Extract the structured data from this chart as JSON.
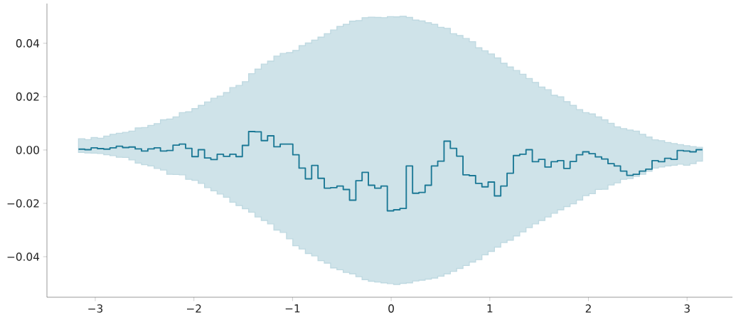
{
  "chart_data": {
    "type": "step",
    "x": [
      -3.17,
      -3.106,
      -3.042,
      -2.978,
      -2.914,
      -2.851,
      -2.787,
      -2.723,
      -2.659,
      -2.595,
      -2.531,
      -2.467,
      -2.403,
      -2.339,
      -2.275,
      -2.212,
      -2.148,
      -2.084,
      -2.02,
      -1.956,
      -1.892,
      -1.828,
      -1.764,
      -1.7,
      -1.636,
      -1.573,
      -1.509,
      -1.445,
      -1.381,
      -1.317,
      -1.253,
      -1.189,
      -1.125,
      -1.061,
      -0.997,
      -0.934,
      -0.87,
      -0.806,
      -0.742,
      -0.678,
      -0.614,
      -0.55,
      -0.486,
      -0.422,
      -0.358,
      -0.295,
      -0.231,
      -0.167,
      -0.103,
      -0.039,
      0.025,
      0.089,
      0.153,
      0.217,
      0.281,
      0.344,
      0.408,
      0.472,
      0.536,
      0.6,
      0.664,
      0.728,
      0.792,
      0.856,
      0.92,
      0.983,
      1.047,
      1.111,
      1.175,
      1.239,
      1.303,
      1.367,
      1.431,
      1.495,
      1.559,
      1.622,
      1.686,
      1.75,
      1.814,
      1.878,
      1.942,
      2.006,
      2.07,
      2.134,
      2.198,
      2.261,
      2.325,
      2.389,
      2.453,
      2.517,
      2.581,
      2.645,
      2.709,
      2.773,
      2.837,
      2.9,
      2.964,
      3.028,
      3.092,
      3.156
    ],
    "xlim": [
      -3.49,
      3.46
    ],
    "ylim": [
      -0.0552,
      0.0549
    ],
    "xticks": [
      {
        "value": -3,
        "label": "−3"
      },
      {
        "value": -2,
        "label": "−2"
      },
      {
        "value": -1,
        "label": "−1"
      },
      {
        "value": 0,
        "label": "0"
      },
      {
        "value": 1,
        "label": "1"
      },
      {
        "value": 2,
        "label": "2"
      },
      {
        "value": 3,
        "label": "3"
      }
    ],
    "yticks": [
      {
        "value": -0.04,
        "label": "−0.04"
      },
      {
        "value": -0.02,
        "label": "−0.02"
      },
      {
        "value": 0,
        "label": "0.00"
      },
      {
        "value": 0.02,
        "label": "0.02"
      },
      {
        "value": 0.04,
        "label": "0.04"
      }
    ],
    "series": [
      {
        "color": "#1b7895",
        "values": [
          0.0003,
          0.0001,
          0.0008,
          0.0005,
          0.0003,
          0.0008,
          0.0014,
          0.0009,
          0.0011,
          0.0004,
          -0.0004,
          0.0004,
          0.0008,
          -0.0004,
          -0.0002,
          0.0018,
          0.0022,
          0.0006,
          -0.0025,
          0.0001,
          -0.003,
          -0.0036,
          -0.0016,
          -0.0024,
          -0.0016,
          -0.0025,
          0.0017,
          0.0069,
          0.0068,
          0.0035,
          0.0053,
          0.0012,
          0.0022,
          0.0022,
          -0.0018,
          -0.0068,
          -0.0108,
          -0.0058,
          -0.0106,
          -0.0143,
          -0.0141,
          -0.0135,
          -0.0148,
          -0.0188,
          -0.0115,
          -0.0084,
          -0.0132,
          -0.0143,
          -0.0135,
          -0.0228,
          -0.0224,
          -0.0219,
          -0.006,
          -0.0162,
          -0.0159,
          -0.0132,
          -0.006,
          -0.0042,
          0.0033,
          0.0006,
          -0.0023,
          -0.0093,
          -0.0096,
          -0.0125,
          -0.0138,
          -0.012,
          -0.0172,
          -0.0135,
          -0.0087,
          -0.0021,
          -0.0016,
          0.0001,
          -0.0044,
          -0.0035,
          -0.0064,
          -0.0044,
          -0.004,
          -0.0069,
          -0.0043,
          -0.0018,
          -0.0007,
          -0.0014,
          -0.0026,
          -0.0034,
          -0.0051,
          -0.006,
          -0.0079,
          -0.0095,
          -0.0091,
          -0.0079,
          -0.0072,
          -0.004,
          -0.0044,
          -0.0031,
          -0.0035,
          -0.0002,
          -0.0004,
          -0.0007,
          0.0001,
          0.0001
        ],
        "lower": [
          -0.0009,
          -0.0011,
          -0.0012,
          -0.0013,
          -0.0018,
          -0.0021,
          -0.0027,
          -0.0028,
          -0.0037,
          -0.0049,
          -0.0055,
          -0.006,
          -0.0069,
          -0.0075,
          -0.0091,
          -0.0092,
          -0.0093,
          -0.011,
          -0.0114,
          -0.0125,
          -0.0141,
          -0.0153,
          -0.0165,
          -0.0177,
          -0.0196,
          -0.0208,
          -0.022,
          -0.0233,
          -0.0251,
          -0.0264,
          -0.0277,
          -0.03,
          -0.0309,
          -0.0333,
          -0.0359,
          -0.0371,
          -0.0388,
          -0.0397,
          -0.0415,
          -0.0424,
          -0.0442,
          -0.0449,
          -0.0459,
          -0.0464,
          -0.0475,
          -0.0486,
          -0.0492,
          -0.0495,
          -0.0498,
          -0.0501,
          -0.0504,
          -0.05,
          -0.0498,
          -0.0491,
          -0.0488,
          -0.0484,
          -0.048,
          -0.0473,
          -0.0464,
          -0.0455,
          -0.0444,
          -0.0433,
          -0.042,
          -0.0411,
          -0.0393,
          -0.038,
          -0.0364,
          -0.0347,
          -0.0338,
          -0.0322,
          -0.0307,
          -0.0291,
          -0.0277,
          -0.0264,
          -0.0251,
          -0.0237,
          -0.0224,
          -0.0212,
          -0.0202,
          -0.0188,
          -0.0171,
          -0.0164,
          -0.0148,
          -0.0147,
          -0.0131,
          -0.0123,
          -0.011,
          -0.0107,
          -0.0099,
          -0.0091,
          -0.008,
          -0.0068,
          -0.0064,
          -0.006,
          -0.0057,
          -0.0053,
          -0.0057,
          -0.0051,
          -0.0042,
          -0.0042
        ],
        "upper": [
          0.0042,
          0.0039,
          0.0047,
          0.0044,
          0.0052,
          0.0059,
          0.0063,
          0.0066,
          0.0071,
          0.0083,
          0.0084,
          0.0092,
          0.0099,
          0.0113,
          0.0116,
          0.0124,
          0.014,
          0.0143,
          0.0155,
          0.0167,
          0.018,
          0.0194,
          0.0202,
          0.0215,
          0.0234,
          0.0242,
          0.0256,
          0.0286,
          0.0303,
          0.0322,
          0.0333,
          0.0352,
          0.0362,
          0.0365,
          0.0373,
          0.0391,
          0.0401,
          0.0412,
          0.0423,
          0.0436,
          0.045,
          0.0463,
          0.0471,
          0.0483,
          0.0485,
          0.0496,
          0.0498,
          0.0497,
          0.0496,
          0.05,
          0.0499,
          0.0501,
          0.0497,
          0.0487,
          0.0484,
          0.0477,
          0.0471,
          0.046,
          0.0456,
          0.0436,
          0.0429,
          0.0418,
          0.0406,
          0.0383,
          0.0372,
          0.036,
          0.0345,
          0.0325,
          0.0311,
          0.0298,
          0.0284,
          0.0268,
          0.0253,
          0.0236,
          0.0226,
          0.0205,
          0.0199,
          0.0181,
          0.0167,
          0.0151,
          0.014,
          0.0135,
          0.0124,
          0.0113,
          0.01,
          0.0087,
          0.008,
          0.0075,
          0.0071,
          0.0059,
          0.0049,
          0.0038,
          0.0035,
          0.0028,
          0.0024,
          0.002,
          0.0016,
          0.0013,
          0.001,
          0.001
        ]
      }
    ]
  }
}
